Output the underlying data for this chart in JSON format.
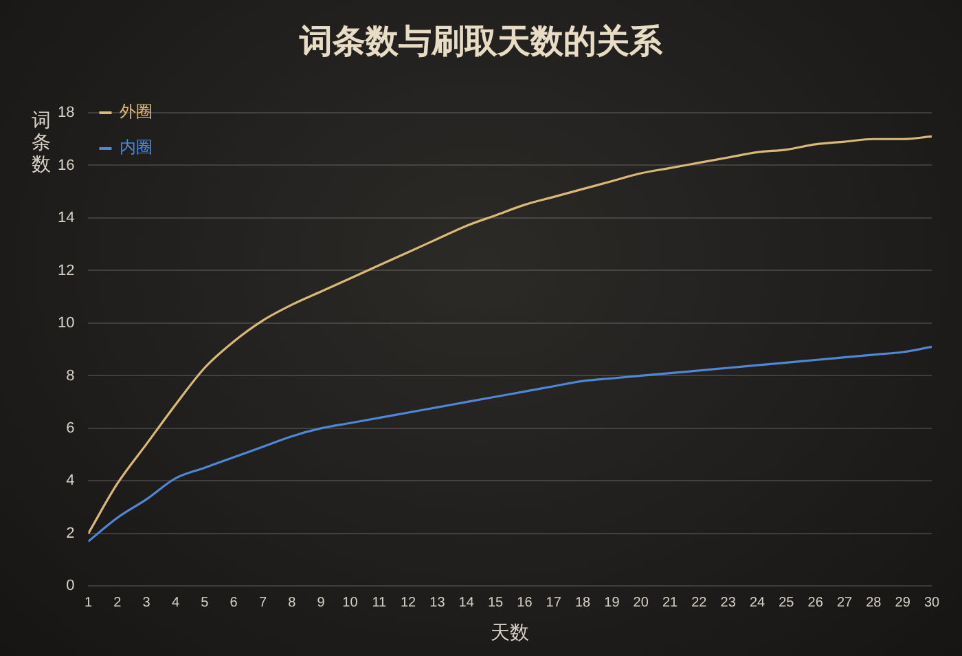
{
  "chart_data": {
    "type": "line",
    "title": "词条数与刷取天数的关系",
    "xlabel": "天数",
    "ylabel": "词条数",
    "x": [
      1,
      2,
      3,
      4,
      5,
      6,
      7,
      8,
      9,
      10,
      11,
      12,
      13,
      14,
      15,
      16,
      17,
      18,
      19,
      20,
      21,
      22,
      23,
      24,
      25,
      26,
      27,
      28,
      29,
      30
    ],
    "series": [
      {
        "name": "外圈",
        "color": "#d9b878",
        "values": [
          2.0,
          3.9,
          5.4,
          6.9,
          8.3,
          9.3,
          10.1,
          10.7,
          11.2,
          11.7,
          12.2,
          12.7,
          13.2,
          13.7,
          14.1,
          14.5,
          14.8,
          15.1,
          15.4,
          15.7,
          15.9,
          16.1,
          16.3,
          16.5,
          16.6,
          16.8,
          16.9,
          17.0,
          17.0,
          17.1
        ]
      },
      {
        "name": "内圈",
        "color": "#4f86d6",
        "values": [
          1.7,
          2.6,
          3.3,
          4.1,
          4.5,
          4.9,
          5.3,
          5.7,
          6.0,
          6.2,
          6.4,
          6.6,
          6.8,
          7.0,
          7.2,
          7.4,
          7.6,
          7.8,
          7.9,
          8.0,
          8.1,
          8.2,
          8.3,
          8.4,
          8.5,
          8.6,
          8.7,
          8.8,
          8.9,
          9.1
        ]
      }
    ],
    "xlim": [
      1,
      30
    ],
    "xticks": [
      1,
      2,
      3,
      4,
      5,
      6,
      7,
      8,
      9,
      10,
      11,
      12,
      13,
      14,
      15,
      16,
      17,
      18,
      19,
      20,
      21,
      22,
      23,
      24,
      25,
      26,
      27,
      28,
      29,
      30
    ],
    "ylim": [
      0,
      18
    ],
    "yticks": [
      0,
      2,
      4,
      6,
      8,
      10,
      12,
      14,
      16,
      18
    ],
    "grid": "y",
    "legend": "top left",
    "marker": "none",
    "line_style": "solid"
  }
}
